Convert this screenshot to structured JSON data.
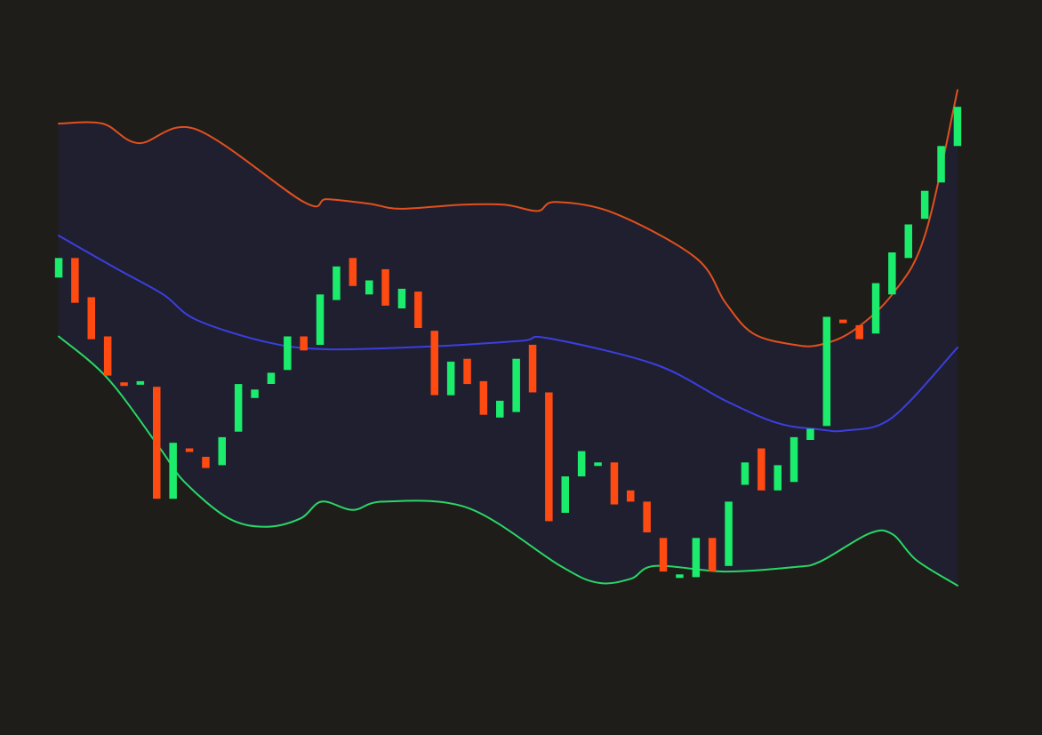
{
  "colors": {
    "background": "#1e1d1a",
    "band_fill": "#201f30",
    "upper_band": "#e1501e",
    "middle_band": "#3a3fe0",
    "lower_band": "#29d765",
    "candle_up": "#1bec6c",
    "candle_down": "#ff4a12"
  },
  "chart_data": {
    "type": "candlestick",
    "x_range": [
      0,
      55
    ],
    "y_range": [
      0,
      100
    ],
    "grid": false,
    "candles": [
      {
        "x": 0,
        "open": 65.5,
        "close": 69.0,
        "dir": "up"
      },
      {
        "x": 1,
        "open": 69.0,
        "close": 61.0,
        "dir": "down"
      },
      {
        "x": 2,
        "open": 62.0,
        "close": 54.5,
        "dir": "down"
      },
      {
        "x": 3,
        "open": 55.0,
        "close": 48.0,
        "dir": "down"
      },
      {
        "x": 4,
        "open": 46.8,
        "close": 46.6,
        "dir": "down"
      },
      {
        "x": 5,
        "open": 46.6,
        "close": 47.0,
        "dir": "up"
      },
      {
        "x": 6,
        "open": 46.0,
        "close": 26.0,
        "dir": "down"
      },
      {
        "x": 7,
        "open": 26.0,
        "close": 36.0,
        "dir": "up"
      },
      {
        "x": 8,
        "open": 35.0,
        "close": 34.5,
        "dir": "down"
      },
      {
        "x": 9,
        "open": 33.5,
        "close": 31.5,
        "dir": "down"
      },
      {
        "x": 10,
        "open": 32.0,
        "close": 37.0,
        "dir": "up"
      },
      {
        "x": 11,
        "open": 38.0,
        "close": 46.5,
        "dir": "up"
      },
      {
        "x": 12,
        "open": 44.0,
        "close": 45.5,
        "dir": "up"
      },
      {
        "x": 13,
        "open": 46.5,
        "close": 48.5,
        "dir": "up"
      },
      {
        "x": 14,
        "open": 49.0,
        "close": 55.0,
        "dir": "up"
      },
      {
        "x": 15,
        "open": 55.0,
        "close": 52.5,
        "dir": "down"
      },
      {
        "x": 16,
        "open": 53.5,
        "close": 62.5,
        "dir": "up"
      },
      {
        "x": 17,
        "open": 61.5,
        "close": 67.5,
        "dir": "up"
      },
      {
        "x": 18,
        "open": 69.0,
        "close": 64.0,
        "dir": "down"
      },
      {
        "x": 19,
        "open": 62.5,
        "close": 65.0,
        "dir": "up"
      },
      {
        "x": 20,
        "open": 67.0,
        "close": 60.5,
        "dir": "down"
      },
      {
        "x": 21,
        "open": 60.0,
        "close": 63.5,
        "dir": "up"
      },
      {
        "x": 22,
        "open": 63.0,
        "close": 56.5,
        "dir": "down"
      },
      {
        "x": 23,
        "open": 56.0,
        "close": 44.5,
        "dir": "down"
      },
      {
        "x": 24,
        "open": 44.5,
        "close": 50.5,
        "dir": "up"
      },
      {
        "x": 25,
        "open": 51.0,
        "close": 46.5,
        "dir": "down"
      },
      {
        "x": 26,
        "open": 47.0,
        "close": 41.0,
        "dir": "down"
      },
      {
        "x": 27,
        "open": 40.5,
        "close": 43.5,
        "dir": "up"
      },
      {
        "x": 28,
        "open": 41.5,
        "close": 51.0,
        "dir": "up"
      },
      {
        "x": 29,
        "open": 53.5,
        "close": 45.0,
        "dir": "down"
      },
      {
        "x": 30,
        "open": 45.0,
        "close": 22.0,
        "dir": "down"
      },
      {
        "x": 31,
        "open": 23.5,
        "close": 30.0,
        "dir": "up"
      },
      {
        "x": 32,
        "open": 30.0,
        "close": 34.5,
        "dir": "up"
      },
      {
        "x": 33,
        "open": 32.0,
        "close": 32.5,
        "dir": "up"
      },
      {
        "x": 34,
        "open": 32.5,
        "close": 25.0,
        "dir": "down"
      },
      {
        "x": 35,
        "open": 27.5,
        "close": 25.5,
        "dir": "down"
      },
      {
        "x": 36,
        "open": 25.5,
        "close": 20.0,
        "dir": "down"
      },
      {
        "x": 37,
        "open": 19.0,
        "close": 13.0,
        "dir": "down"
      },
      {
        "x": 38,
        "open": 12.0,
        "close": 12.5,
        "dir": "up"
      },
      {
        "x": 39,
        "open": 12.0,
        "close": 19.0,
        "dir": "up"
      },
      {
        "x": 40,
        "open": 19.0,
        "close": 13.0,
        "dir": "down"
      },
      {
        "x": 41,
        "open": 14.0,
        "close": 25.5,
        "dir": "up"
      },
      {
        "x": 42,
        "open": 28.5,
        "close": 32.5,
        "dir": "up"
      },
      {
        "x": 43,
        "open": 35.0,
        "close": 27.5,
        "dir": "down"
      },
      {
        "x": 44,
        "open": 27.5,
        "close": 32.0,
        "dir": "up"
      },
      {
        "x": 45,
        "open": 29.0,
        "close": 37.0,
        "dir": "up"
      },
      {
        "x": 46,
        "open": 36.5,
        "close": 38.5,
        "dir": "up"
      },
      {
        "x": 47,
        "open": 39.0,
        "close": 58.5,
        "dir": "up"
      },
      {
        "x": 48,
        "open": 58.0,
        "close": 57.5,
        "dir": "down"
      },
      {
        "x": 49,
        "open": 57.0,
        "close": 54.5,
        "dir": "down"
      },
      {
        "x": 50,
        "open": 55.5,
        "close": 64.5,
        "dir": "up"
      },
      {
        "x": 51,
        "open": 62.5,
        "close": 70.0,
        "dir": "up"
      },
      {
        "x": 52,
        "open": 69.0,
        "close": 75.0,
        "dir": "up"
      },
      {
        "x": 53,
        "open": 76.0,
        "close": 81.0,
        "dir": "up"
      },
      {
        "x": 54,
        "open": 82.5,
        "close": 89.0,
        "dir": "up"
      },
      {
        "x": 55,
        "open": 89.0,
        "close": 96.0,
        "dir": "up"
      }
    ],
    "bands": {
      "upper": [
        [
          0,
          93
        ],
        [
          2.7,
          93
        ],
        [
          4.9,
          89.5
        ],
        [
          8.4,
          92
        ],
        [
          15,
          79
        ],
        [
          16.4,
          79.5
        ],
        [
          19,
          78.7
        ],
        [
          20.9,
          77.8
        ],
        [
          24.6,
          78.5
        ],
        [
          27.3,
          78.5
        ],
        [
          29.3,
          77.4
        ],
        [
          30.4,
          79
        ],
        [
          34,
          77
        ],
        [
          39,
          69
        ],
        [
          40.8,
          61
        ],
        [
          42.5,
          55.5
        ],
        [
          45,
          53.5
        ],
        [
          46.6,
          53.5
        ],
        [
          48.6,
          56
        ],
        [
          51,
          62.5
        ],
        [
          53,
          73
        ],
        [
          55,
          99
        ]
      ],
      "middle": [
        [
          0,
          73
        ],
        [
          3.6,
          67
        ],
        [
          6.4,
          62.5
        ],
        [
          8.4,
          58
        ],
        [
          12.7,
          54
        ],
        [
          16.4,
          52.7
        ],
        [
          22.8,
          53.2
        ],
        [
          28.3,
          54.2
        ],
        [
          29.9,
          54.7
        ],
        [
          36.5,
          50
        ],
        [
          40.8,
          43.5
        ],
        [
          44,
          39.5
        ],
        [
          46.5,
          38.4
        ],
        [
          48.2,
          38.2
        ],
        [
          51,
          40.5
        ],
        [
          55,
          53
        ]
      ],
      "lower": [
        [
          0,
          55
        ],
        [
          3,
          47.5
        ],
        [
          6.2,
          35
        ],
        [
          7.7,
          29
        ],
        [
          10.4,
          22.5
        ],
        [
          12.7,
          21
        ],
        [
          14.8,
          22.5
        ],
        [
          16.1,
          25.5
        ],
        [
          18,
          24
        ],
        [
          19.9,
          25.5
        ],
        [
          25.1,
          24.3
        ],
        [
          30.7,
          14
        ],
        [
          33,
          11
        ],
        [
          35,
          11.7
        ],
        [
          36.5,
          14
        ],
        [
          40.8,
          13
        ],
        [
          45,
          13.8
        ],
        [
          46.6,
          14.8
        ],
        [
          49.6,
          19.8
        ],
        [
          51,
          19.7
        ],
        [
          52.5,
          15
        ],
        [
          55,
          10.5
        ]
      ]
    }
  }
}
